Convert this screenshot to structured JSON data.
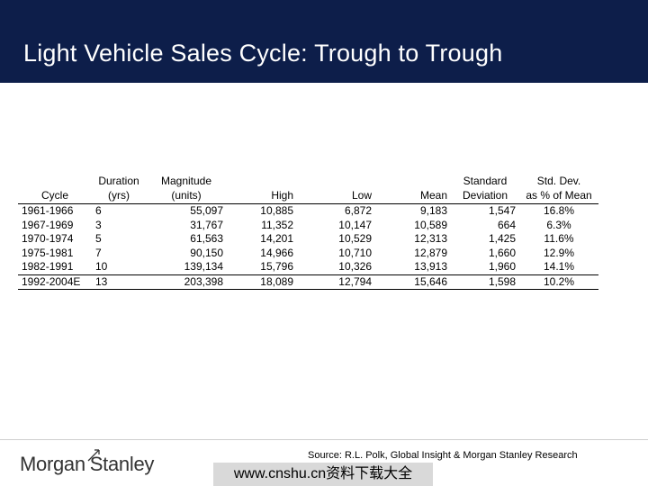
{
  "title": "Light Vehicle Sales Cycle: Trough to Trough",
  "table": {
    "headers": [
      [
        "",
        "Cycle"
      ],
      [
        "Duration",
        "(yrs)"
      ],
      [
        "Magnitude",
        "(units)"
      ],
      [
        "",
        "High"
      ],
      [
        "",
        "Low"
      ],
      [
        "",
        "Mean"
      ],
      [
        "Standard",
        "Deviation"
      ],
      [
        "Std. Dev.",
        "as % of Mean"
      ]
    ],
    "rows": [
      [
        "1961-1966",
        "6",
        "55,097",
        "10,885",
        "6,872",
        "9,183",
        "1,547",
        "16.8%"
      ],
      [
        "1967-1969",
        "3",
        "31,767",
        "11,352",
        "10,147",
        "10,589",
        "664",
        "6.3%"
      ],
      [
        "1970-1974",
        "5",
        "61,563",
        "14,201",
        "10,529",
        "12,313",
        "1,425",
        "11.6%"
      ],
      [
        "1975-1981",
        "7",
        "90,150",
        "14,966",
        "10,710",
        "12,879",
        "1,660",
        "12.9%"
      ],
      [
        "1982-1991",
        "10",
        "139,134",
        "15,796",
        "10,326",
        "13,913",
        "1,960",
        "14.1%"
      ],
      [
        "1992-2004E",
        "13",
        "203,398",
        "18,089",
        "12,794",
        "15,646",
        "1,598",
        "10.2%"
      ]
    ]
  },
  "source": "Source: R.L. Polk, Global Insight & Morgan Stanley Research",
  "logo": {
    "part1": "Morgan",
    "part2": "Stanley"
  },
  "watermark": "www.cnshu.cn资料下载大全",
  "colors": {
    "title_bar": "#0d1e4a",
    "title_text": "#ffffff",
    "watermark_bg": "#d9d9d9"
  }
}
